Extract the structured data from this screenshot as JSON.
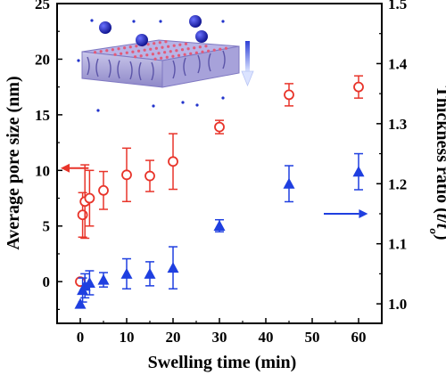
{
  "chart_data": {
    "type": "scatter",
    "xlabel": "Swelling time (min)",
    "ylabel_left": "Average pore size (nm)",
    "ylabel_right_prefix": "Thickness ratio (",
    "ylabel_right_t": "t",
    "ylabel_right_slash": "/",
    "ylabel_right_t0": "t",
    "ylabel_right_sub": "o",
    "ylabel_right_suffix": ")",
    "xlim": [
      -5,
      65
    ],
    "ylim_left": [
      -3.75,
      25
    ],
    "ylim_right": [
      0.9675,
      1.5
    ],
    "x_ticks": [
      "0",
      "10",
      "20",
      "30",
      "40",
      "50",
      "60"
    ],
    "y_left_ticks": [
      "0",
      "5",
      "10",
      "15",
      "20",
      "25"
    ],
    "y_right_ticks": [
      "1.0",
      "1.1",
      "1.2",
      "1.3",
      "1.4",
      "1.5"
    ],
    "series": [
      {
        "axis": "left",
        "marker": "open-circle",
        "color": "#e8342a",
        "points": [
          {
            "x": 0,
            "y": 0.0,
            "err": 0.0
          },
          {
            "x": 0.5,
            "y": 6.0,
            "err": 2.0
          },
          {
            "x": 1,
            "y": 7.2,
            "err": 3.3
          },
          {
            "x": 2,
            "y": 7.5,
            "err": 2.5
          },
          {
            "x": 5,
            "y": 8.2,
            "err": 1.7
          },
          {
            "x": 10,
            "y": 9.6,
            "err": 2.4
          },
          {
            "x": 15,
            "y": 9.5,
            "err": 1.4
          },
          {
            "x": 20,
            "y": 10.8,
            "err": 2.5
          },
          {
            "x": 30,
            "y": 13.9,
            "err": 0.6
          },
          {
            "x": 45,
            "y": 16.8,
            "err": 1.0
          },
          {
            "x": 60,
            "y": 17.5,
            "err": 1.0
          }
        ]
      },
      {
        "axis": "right",
        "marker": "filled-triangle",
        "color": "#1f3fe0",
        "points": [
          {
            "x": 0,
            "y": 1.0,
            "err": 0.0
          },
          {
            "x": 0.5,
            "y": 1.023,
            "err": 0.02
          },
          {
            "x": 1,
            "y": 1.03,
            "err": 0.02
          },
          {
            "x": 2,
            "y": 1.035,
            "err": 0.02
          },
          {
            "x": 5,
            "y": 1.04,
            "err": 0.012
          },
          {
            "x": 10,
            "y": 1.05,
            "err": 0.025
          },
          {
            "x": 15,
            "y": 1.05,
            "err": 0.02
          },
          {
            "x": 20,
            "y": 1.06,
            "err": 0.035
          },
          {
            "x": 30,
            "y": 1.13,
            "err": 0.01
          },
          {
            "x": 45,
            "y": 1.2,
            "err": 0.03
          },
          {
            "x": 60,
            "y": 1.22,
            "err": 0.03
          }
        ]
      }
    ],
    "left_arrow_color": "#e8342a",
    "right_arrow_color": "#1f3fe0"
  }
}
